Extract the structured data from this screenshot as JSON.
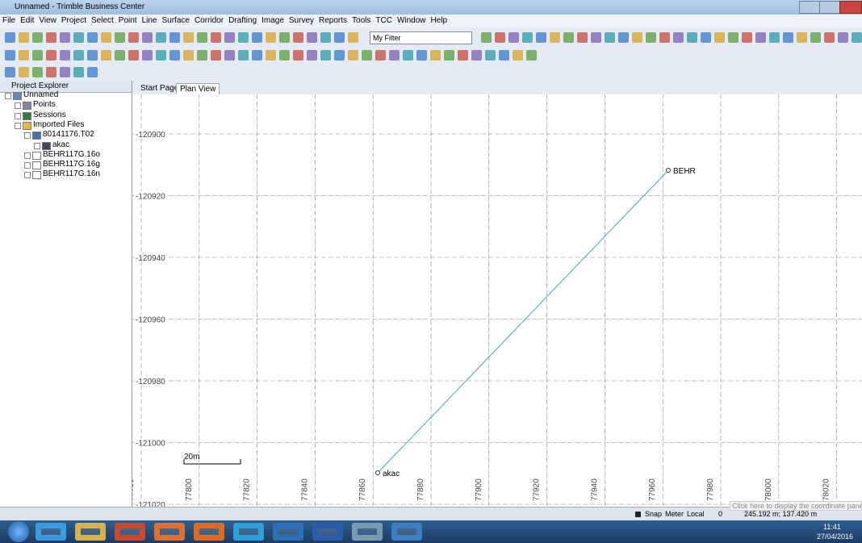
{
  "window": {
    "title": "Unnamed - Trimble Business Center"
  },
  "menu": [
    "File",
    "Edit",
    "View",
    "Project",
    "Select",
    "Point",
    "Line",
    "Surface",
    "Corridor",
    "Drafting",
    "Image",
    "Survey",
    "Reports",
    "Tools",
    "TCC",
    "Window",
    "Help"
  ],
  "toolbar": {
    "filter": "My Filter"
  },
  "explorer": {
    "title": "Project Explorer",
    "tree": [
      {
        "label": "Unnamed",
        "level": 0
      },
      {
        "label": "Points",
        "level": 1
      },
      {
        "label": "Sessions",
        "level": 1
      },
      {
        "label": "Imported Files",
        "level": 1
      },
      {
        "label": "80141176.T02",
        "level": 2
      },
      {
        "label": "akac",
        "level": 3
      },
      {
        "label": "BEHR117G.16o",
        "level": 2
      },
      {
        "label": "BEHR117G.16g",
        "level": 2
      },
      {
        "label": "BEHR117G.16n",
        "level": 2
      }
    ]
  },
  "tabs": [
    "Start Page",
    "Plan View"
  ],
  "plan": {
    "y_labels": [
      "-120900",
      "-120920",
      "-120940",
      "-120960",
      "-120980",
      "-121000",
      "-121020"
    ],
    "x_labels": [
      "77780",
      "77800",
      "77820",
      "77840",
      "77860",
      "77880",
      "77900",
      "77920",
      "77940",
      "77960",
      "77980",
      "78000",
      "78020"
    ],
    "points": [
      "BEHR",
      "akac"
    ],
    "scale": "20m"
  },
  "status": {
    "items": [
      "Snap",
      "Meter",
      "Local",
      "0"
    ],
    "coords": "245.192 m; 137.420 m",
    "hint": "Click here to display the coordinate pane"
  },
  "taskbar": {
    "time": "11:41",
    "date": "27/04/2016"
  }
}
